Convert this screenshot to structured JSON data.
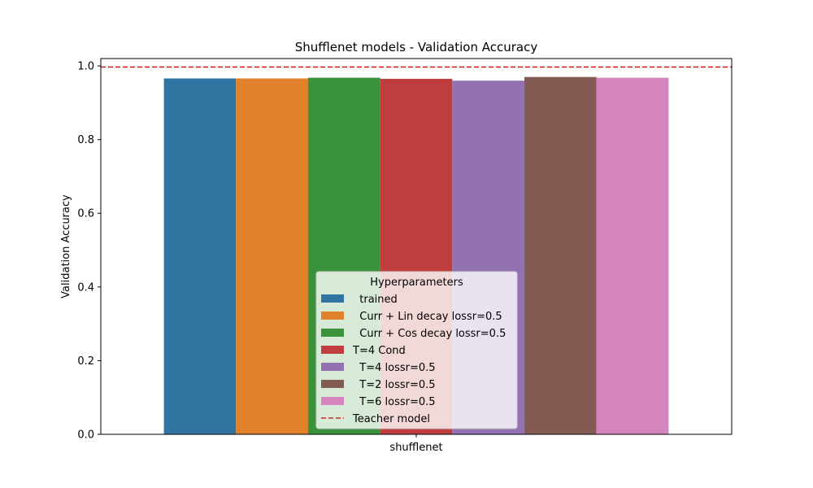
{
  "chart_data": {
    "type": "bar",
    "title": "Shufflenet models - Validation Accuracy",
    "xlabel": "",
    "ylabel": "Validation Accuracy",
    "categories": [
      "shufflenet"
    ],
    "ylim": [
      0,
      1.02
    ],
    "yticks": [
      "0.0",
      "0.2",
      "0.4",
      "0.6",
      "0.8",
      "1.0"
    ],
    "grid": false,
    "legend": {
      "title": "Hyperparameters",
      "placement": "lower-center"
    },
    "series": [
      {
        "name": "  trained",
        "values": [
          0.966
        ],
        "color": "#3274a1"
      },
      {
        "name": "  Curr + Lin decay lossr=0.5",
        "values": [
          0.966
        ],
        "color": "#e1812c"
      },
      {
        "name": "  Curr + Cos decay lossr=0.5",
        "values": [
          0.968
        ],
        "color": "#3a923a"
      },
      {
        "name": "T=4 Cond",
        "values": [
          0.965
        ],
        "color": "#c03d3e"
      },
      {
        "name": "  T=4 lossr=0.5",
        "values": [
          0.96
        ],
        "color": "#9372b2"
      },
      {
        "name": "  T=2 lossr=0.5",
        "values": [
          0.97
        ],
        "color": "#845b53"
      },
      {
        "name": "  T=6 lossr=0.5",
        "values": [
          0.968
        ],
        "color": "#d684bd"
      }
    ],
    "reference_line": {
      "name": "Teacher model",
      "value": 0.997,
      "color": "#d62728",
      "style": "dashed"
    }
  }
}
